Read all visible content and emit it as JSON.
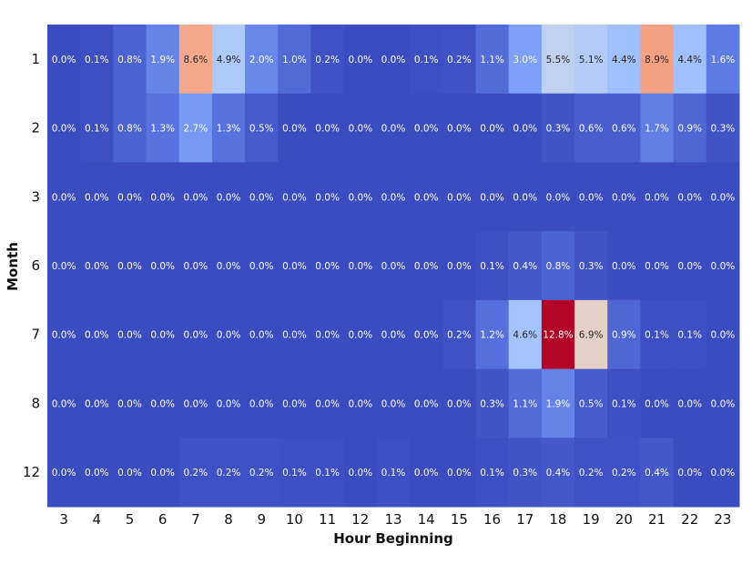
{
  "chart_data": {
    "type": "heatmap",
    "title": "",
    "xlabel": "Hour Beginning",
    "ylabel": "Month",
    "x_categories": [
      "3",
      "4",
      "5",
      "6",
      "7",
      "8",
      "9",
      "10",
      "11",
      "12",
      "13",
      "14",
      "15",
      "16",
      "17",
      "18",
      "19",
      "20",
      "21",
      "22",
      "23"
    ],
    "y_categories": [
      "1",
      "2",
      "3",
      "6",
      "7",
      "8",
      "12"
    ],
    "value_format": "percent, 1 decimal",
    "colormap": "coolwarm",
    "color_range": [
      0,
      12.8
    ],
    "values": [
      [
        0.0,
        0.1,
        0.8,
        1.9,
        8.6,
        4.9,
        2.0,
        1.0,
        0.2,
        0.0,
        0.0,
        0.1,
        0.2,
        1.1,
        3.0,
        5.5,
        5.1,
        4.4,
        8.9,
        4.4,
        1.6
      ],
      [
        0.0,
        0.1,
        0.8,
        1.3,
        2.7,
        1.3,
        0.5,
        0.0,
        0.0,
        0.0,
        0.0,
        0.0,
        0.0,
        0.0,
        0.0,
        0.3,
        0.6,
        0.6,
        1.7,
        0.9,
        0.3
      ],
      [
        0.0,
        0.0,
        0.0,
        0.0,
        0.0,
        0.0,
        0.0,
        0.0,
        0.0,
        0.0,
        0.0,
        0.0,
        0.0,
        0.0,
        0.0,
        0.0,
        0.0,
        0.0,
        0.0,
        0.0,
        0.0
      ],
      [
        0.0,
        0.0,
        0.0,
        0.0,
        0.0,
        0.0,
        0.0,
        0.0,
        0.0,
        0.0,
        0.0,
        0.0,
        0.0,
        0.1,
        0.4,
        0.8,
        0.3,
        0.0,
        0.0,
        0.0,
        0.0
      ],
      [
        0.0,
        0.0,
        0.0,
        0.0,
        0.0,
        0.0,
        0.0,
        0.0,
        0.0,
        0.0,
        0.0,
        0.0,
        0.2,
        1.2,
        4.6,
        12.8,
        6.9,
        0.9,
        0.1,
        0.1,
        0.0
      ],
      [
        0.0,
        0.0,
        0.0,
        0.0,
        0.0,
        0.0,
        0.0,
        0.0,
        0.0,
        0.0,
        0.0,
        0.0,
        0.0,
        0.3,
        1.1,
        1.9,
        0.5,
        0.1,
        0.0,
        0.0,
        0.0
      ],
      [
        0.0,
        0.0,
        0.0,
        0.0,
        0.2,
        0.2,
        0.2,
        0.1,
        0.1,
        0.0,
        0.1,
        0.0,
        0.0,
        0.1,
        0.3,
        0.4,
        0.2,
        0.2,
        0.4,
        0.0,
        0.0
      ]
    ]
  }
}
